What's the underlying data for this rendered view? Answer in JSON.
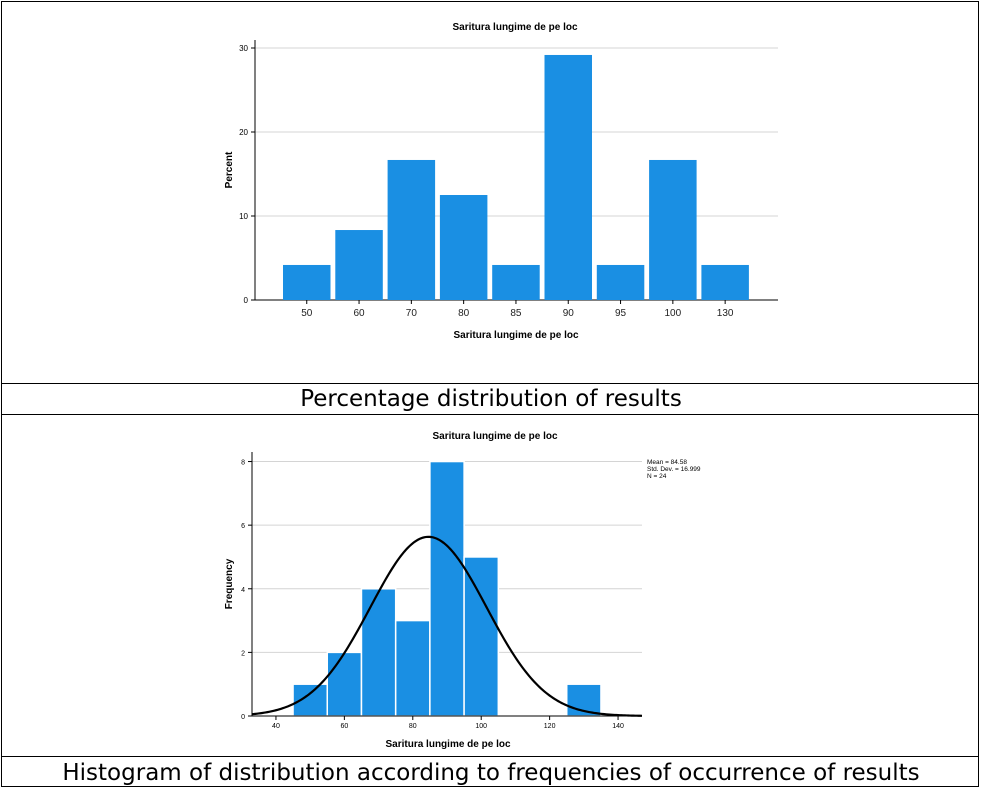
{
  "captions": {
    "bar_caption": "Percentage distribution of results",
    "hist_caption": "Histogram of distribution according to frequencies of occurrence of results"
  },
  "chart_data": [
    {
      "type": "bar",
      "title": "Saritura lungime de pe loc",
      "xlabel": "Saritura lungime de pe loc",
      "ylabel": "Percent",
      "categories": [
        "50",
        "60",
        "70",
        "80",
        "85",
        "90",
        "95",
        "100",
        "130"
      ],
      "values": [
        4.17,
        8.33,
        16.67,
        12.5,
        4.17,
        29.17,
        4.17,
        16.67,
        4.17
      ],
      "ylim": [
        0,
        30
      ],
      "yticks": [
        0,
        10,
        20,
        30
      ],
      "grid": true,
      "bar_color": "#1a8fe3"
    },
    {
      "type": "bar",
      "subtype": "histogram",
      "title": "Saritura lungime de pe loc",
      "xlabel": "Saritura lungime de pe loc",
      "ylabel": "Frequency",
      "bins": [
        {
          "start": 45,
          "end": 55,
          "count": 1
        },
        {
          "start": 55,
          "end": 65,
          "count": 2
        },
        {
          "start": 65,
          "end": 75,
          "count": 4
        },
        {
          "start": 75,
          "end": 85,
          "count": 3
        },
        {
          "start": 85,
          "end": 95,
          "count": 8
        },
        {
          "start": 95,
          "end": 105,
          "count": 5
        },
        {
          "start": 125,
          "end": 135,
          "count": 1
        }
      ],
      "xlim": [
        33,
        147
      ],
      "xticks": [
        40,
        60,
        80,
        100,
        120,
        140
      ],
      "ylim": [
        0,
        8.3
      ],
      "yticks": [
        0,
        2,
        4,
        6,
        8
      ],
      "grid": true,
      "bar_color": "#1a8fe3",
      "curve_color": "#000000",
      "normal_curve": {
        "mean": 84.58,
        "sd": 16.999,
        "n": 24,
        "bin_width": 10
      },
      "stats": [
        "Mean = 84.58",
        "Std. Dev. = 16.999",
        "N = 24"
      ],
      "legend_placement": "top-right"
    }
  ]
}
